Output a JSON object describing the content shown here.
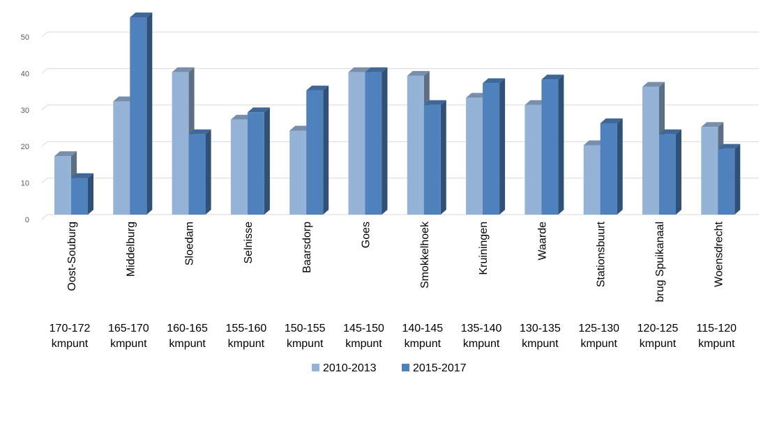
{
  "chart_data": {
    "type": "bar",
    "style": "3d-clustered-column",
    "categories": [
      {
        "place": "Oost-Souburg",
        "range": "170-172",
        "unit": "kmpunt"
      },
      {
        "place": "Middelburg",
        "range": "165-170",
        "unit": "kmpunt"
      },
      {
        "place": "Sloedam",
        "range": "160-165",
        "unit": "kmpunt"
      },
      {
        "place": "Selnisse",
        "range": "155-160",
        "unit": "kmpunt"
      },
      {
        "place": "Baarsdorp",
        "range": "150-155",
        "unit": "kmpunt"
      },
      {
        "place": "Goes",
        "range": "145-150",
        "unit": "kmpunt"
      },
      {
        "place": "Smokkelhoek",
        "range": "140-145",
        "unit": "kmpunt"
      },
      {
        "place": "Kruiningen",
        "range": "135-140",
        "unit": "kmpunt"
      },
      {
        "place": "Waarde",
        "range": "130-135",
        "unit": "kmpunt"
      },
      {
        "place": "Stationsbuurt",
        "range": "125-130",
        "unit": "kmpunt"
      },
      {
        "place": "brug Spuikanaal",
        "range": "120-125",
        "unit": "kmpunt"
      },
      {
        "place": "Woensdrecht",
        "range": "115-120",
        "unit": "kmpunt"
      }
    ],
    "series": [
      {
        "name": "2010-2013",
        "color": "#95b3d7",
        "values": [
          16,
          31,
          39,
          26,
          23,
          39,
          38,
          32,
          30,
          19,
          35,
          24
        ]
      },
      {
        "name": "2015-2017",
        "color": "#4f81bd",
        "values": [
          10,
          54,
          22,
          28,
          34,
          39,
          30,
          36,
          37,
          25,
          22,
          18
        ]
      }
    ],
    "ylim": [
      0,
      50
    ],
    "yticks": [
      "0",
      "10",
      "20",
      "30",
      "40",
      "50"
    ],
    "grid": true,
    "legend_position": "bottom"
  }
}
